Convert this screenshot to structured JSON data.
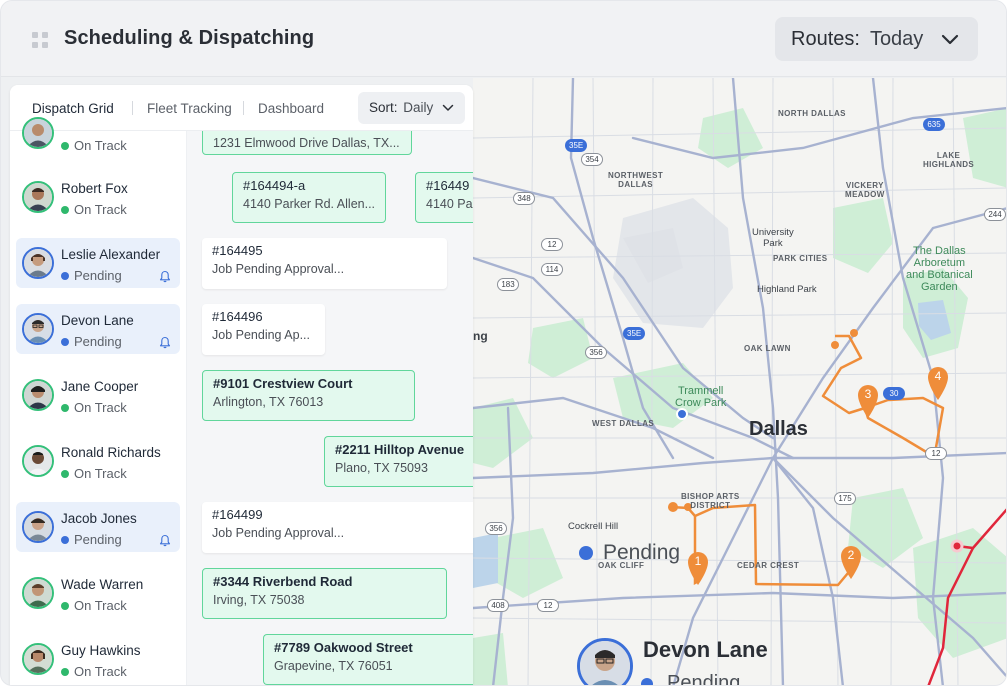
{
  "header": {
    "title": "Scheduling & Dispatching",
    "routes_label": "Routes:",
    "routes_value": "Today"
  },
  "tabs": [
    {
      "label": "Dispatch Grid",
      "active": true
    },
    {
      "label": "Fleet Tracking",
      "active": false
    },
    {
      "label": "Dashboard",
      "active": false
    }
  ],
  "sort": {
    "label": "Sort:",
    "value": "Daily"
  },
  "people": [
    {
      "name": "",
      "status": "On Track"
    },
    {
      "name": "Robert Fox",
      "status": "On Track"
    },
    {
      "name": "Leslie Alexander",
      "status": "Pending"
    },
    {
      "name": "Devon Lane",
      "status": "Pending"
    },
    {
      "name": "Jane Cooper",
      "status": "On Track"
    },
    {
      "name": "Ronald Richards",
      "status": "On Track"
    },
    {
      "name": "Jacob Jones",
      "status": "Pending"
    },
    {
      "name": "Wade Warren",
      "status": "On Track"
    },
    {
      "name": "Guy Hawkins",
      "status": "On Track"
    }
  ],
  "jobs": [
    {
      "title": "",
      "sub": "1231 Elmwood Drive Dallas, TX...",
      "state": "done"
    },
    {
      "title": "#164494-a",
      "sub": "4140 Parker Rd. Allen...",
      "state": "done"
    },
    {
      "title": "#16449",
      "sub": "4140 Pa",
      "state": "done"
    },
    {
      "title": "#164495",
      "sub": "Job Pending Approval...",
      "state": "wait"
    },
    {
      "title": "#164496",
      "sub": "Job Pending Ap...",
      "state": "wait"
    },
    {
      "title": "#9101 Crestview Court",
      "sub": "Arlington, TX 76013",
      "state": "done"
    },
    {
      "title": "#2211 Hilltop Avenue",
      "sub": "Plano, TX 75093",
      "state": "done"
    },
    {
      "title": "#164499",
      "sub": "Job Pending Approval...",
      "state": "wait"
    },
    {
      "title": "#3344 Riverbend Road",
      "sub": "Irving, TX 75038",
      "state": "done"
    },
    {
      "title": "#7789 Oakwood Street",
      "sub": "Grapevine, TX 76051",
      "state": "done"
    }
  ],
  "map": {
    "city": "Dallas",
    "labels": {
      "north_dallas": "NORTH DALLAS",
      "northwest_dallas": "NORTHWEST\nDALLAS",
      "lake_highlands": "LAKE\nHIGHLANDS",
      "vickery_meadow": "VICKERY\nMEADOW",
      "university_park": "University\nPark",
      "park_cities": "PARK CITIES",
      "arboretum": "The Dallas\nArboretum\nand Botanical\nGarden",
      "highland_park": "Highland Park",
      "oak_lawn": "OAK LAWN",
      "trammell": "Trammell\nCrow Park",
      "west_dallas": "WEST DALLAS",
      "bishop_arts": "BISHOP ARTS\nDISTRICT",
      "cockrell_hill": "Cockrell Hill",
      "oak_cliff": "OAK CLIFF",
      "cedar_crest": "CEDAR CREST",
      "ng": "ng"
    },
    "highways": [
      "35E",
      "354",
      "348",
      "12",
      "114",
      "183",
      "35E",
      "356",
      "30",
      "12",
      "356",
      "408",
      "12",
      "175",
      "635",
      "244"
    ],
    "markers": [
      "1",
      "2",
      "3",
      "4"
    ],
    "pending_label": "Pending",
    "driver_name": "Devon Lane",
    "driver_status": "Pending",
    "colors": {
      "route": "#ef8d3a",
      "route_red": "#e0263b",
      "park": "#cfeed6",
      "water": "#bcd4ea",
      "road": "#a7b2d0"
    }
  }
}
